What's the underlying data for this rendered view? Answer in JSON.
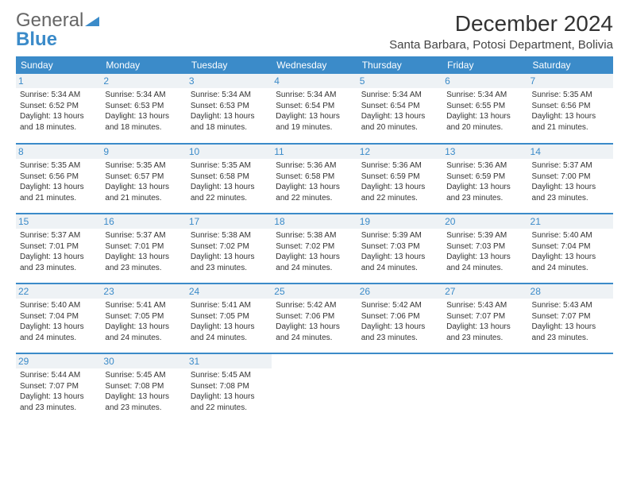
{
  "logo": {
    "text1": "General",
    "text2": "Blue"
  },
  "title": "December 2024",
  "location": "Santa Barbara, Potosi Department, Bolivia",
  "colors": {
    "header_bg": "#3b8bc9",
    "header_fg": "#ffffff",
    "daynum_color": "#3b8bc9",
    "daynum_bg": "#eef2f5",
    "row_divider": "#3b8bc9",
    "body_text": "#333333",
    "page_bg": "#ffffff"
  },
  "typography": {
    "title_fontsize": 28,
    "location_fontsize": 15,
    "header_fontsize": 12,
    "daynum_fontsize": 12,
    "cell_fontsize": 10
  },
  "weekdays": [
    "Sunday",
    "Monday",
    "Tuesday",
    "Wednesday",
    "Thursday",
    "Friday",
    "Saturday"
  ],
  "weeks": [
    [
      {
        "day": "1",
        "sunrise": "Sunrise: 5:34 AM",
        "sunset": "Sunset: 6:52 PM",
        "daylight": "Daylight: 13 hours and 18 minutes."
      },
      {
        "day": "2",
        "sunrise": "Sunrise: 5:34 AM",
        "sunset": "Sunset: 6:53 PM",
        "daylight": "Daylight: 13 hours and 18 minutes."
      },
      {
        "day": "3",
        "sunrise": "Sunrise: 5:34 AM",
        "sunset": "Sunset: 6:53 PM",
        "daylight": "Daylight: 13 hours and 18 minutes."
      },
      {
        "day": "4",
        "sunrise": "Sunrise: 5:34 AM",
        "sunset": "Sunset: 6:54 PM",
        "daylight": "Daylight: 13 hours and 19 minutes."
      },
      {
        "day": "5",
        "sunrise": "Sunrise: 5:34 AM",
        "sunset": "Sunset: 6:54 PM",
        "daylight": "Daylight: 13 hours and 20 minutes."
      },
      {
        "day": "6",
        "sunrise": "Sunrise: 5:34 AM",
        "sunset": "Sunset: 6:55 PM",
        "daylight": "Daylight: 13 hours and 20 minutes."
      },
      {
        "day": "7",
        "sunrise": "Sunrise: 5:35 AM",
        "sunset": "Sunset: 6:56 PM",
        "daylight": "Daylight: 13 hours and 21 minutes."
      }
    ],
    [
      {
        "day": "8",
        "sunrise": "Sunrise: 5:35 AM",
        "sunset": "Sunset: 6:56 PM",
        "daylight": "Daylight: 13 hours and 21 minutes."
      },
      {
        "day": "9",
        "sunrise": "Sunrise: 5:35 AM",
        "sunset": "Sunset: 6:57 PM",
        "daylight": "Daylight: 13 hours and 21 minutes."
      },
      {
        "day": "10",
        "sunrise": "Sunrise: 5:35 AM",
        "sunset": "Sunset: 6:58 PM",
        "daylight": "Daylight: 13 hours and 22 minutes."
      },
      {
        "day": "11",
        "sunrise": "Sunrise: 5:36 AM",
        "sunset": "Sunset: 6:58 PM",
        "daylight": "Daylight: 13 hours and 22 minutes."
      },
      {
        "day": "12",
        "sunrise": "Sunrise: 5:36 AM",
        "sunset": "Sunset: 6:59 PM",
        "daylight": "Daylight: 13 hours and 22 minutes."
      },
      {
        "day": "13",
        "sunrise": "Sunrise: 5:36 AM",
        "sunset": "Sunset: 6:59 PM",
        "daylight": "Daylight: 13 hours and 23 minutes."
      },
      {
        "day": "14",
        "sunrise": "Sunrise: 5:37 AM",
        "sunset": "Sunset: 7:00 PM",
        "daylight": "Daylight: 13 hours and 23 minutes."
      }
    ],
    [
      {
        "day": "15",
        "sunrise": "Sunrise: 5:37 AM",
        "sunset": "Sunset: 7:01 PM",
        "daylight": "Daylight: 13 hours and 23 minutes."
      },
      {
        "day": "16",
        "sunrise": "Sunrise: 5:37 AM",
        "sunset": "Sunset: 7:01 PM",
        "daylight": "Daylight: 13 hours and 23 minutes."
      },
      {
        "day": "17",
        "sunrise": "Sunrise: 5:38 AM",
        "sunset": "Sunset: 7:02 PM",
        "daylight": "Daylight: 13 hours and 23 minutes."
      },
      {
        "day": "18",
        "sunrise": "Sunrise: 5:38 AM",
        "sunset": "Sunset: 7:02 PM",
        "daylight": "Daylight: 13 hours and 24 minutes."
      },
      {
        "day": "19",
        "sunrise": "Sunrise: 5:39 AM",
        "sunset": "Sunset: 7:03 PM",
        "daylight": "Daylight: 13 hours and 24 minutes."
      },
      {
        "day": "20",
        "sunrise": "Sunrise: 5:39 AM",
        "sunset": "Sunset: 7:03 PM",
        "daylight": "Daylight: 13 hours and 24 minutes."
      },
      {
        "day": "21",
        "sunrise": "Sunrise: 5:40 AM",
        "sunset": "Sunset: 7:04 PM",
        "daylight": "Daylight: 13 hours and 24 minutes."
      }
    ],
    [
      {
        "day": "22",
        "sunrise": "Sunrise: 5:40 AM",
        "sunset": "Sunset: 7:04 PM",
        "daylight": "Daylight: 13 hours and 24 minutes."
      },
      {
        "day": "23",
        "sunrise": "Sunrise: 5:41 AM",
        "sunset": "Sunset: 7:05 PM",
        "daylight": "Daylight: 13 hours and 24 minutes."
      },
      {
        "day": "24",
        "sunrise": "Sunrise: 5:41 AM",
        "sunset": "Sunset: 7:05 PM",
        "daylight": "Daylight: 13 hours and 24 minutes."
      },
      {
        "day": "25",
        "sunrise": "Sunrise: 5:42 AM",
        "sunset": "Sunset: 7:06 PM",
        "daylight": "Daylight: 13 hours and 24 minutes."
      },
      {
        "day": "26",
        "sunrise": "Sunrise: 5:42 AM",
        "sunset": "Sunset: 7:06 PM",
        "daylight": "Daylight: 13 hours and 23 minutes."
      },
      {
        "day": "27",
        "sunrise": "Sunrise: 5:43 AM",
        "sunset": "Sunset: 7:07 PM",
        "daylight": "Daylight: 13 hours and 23 minutes."
      },
      {
        "day": "28",
        "sunrise": "Sunrise: 5:43 AM",
        "sunset": "Sunset: 7:07 PM",
        "daylight": "Daylight: 13 hours and 23 minutes."
      }
    ],
    [
      {
        "day": "29",
        "sunrise": "Sunrise: 5:44 AM",
        "sunset": "Sunset: 7:07 PM",
        "daylight": "Daylight: 13 hours and 23 minutes."
      },
      {
        "day": "30",
        "sunrise": "Sunrise: 5:45 AM",
        "sunset": "Sunset: 7:08 PM",
        "daylight": "Daylight: 13 hours and 23 minutes."
      },
      {
        "day": "31",
        "sunrise": "Sunrise: 5:45 AM",
        "sunset": "Sunset: 7:08 PM",
        "daylight": "Daylight: 13 hours and 22 minutes."
      },
      null,
      null,
      null,
      null
    ]
  ]
}
